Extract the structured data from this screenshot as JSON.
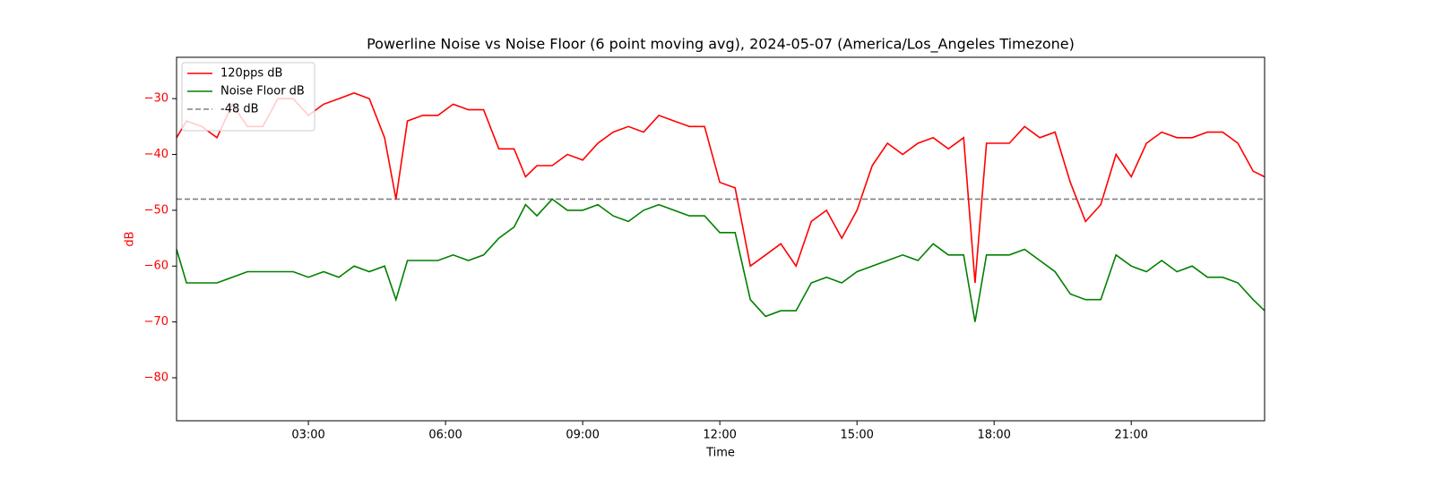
{
  "chart_data": {
    "type": "line",
    "title": "Powerline Noise vs Noise Floor (6 point moving avg), 2024-05-07 (America/Los_Angeles Timezone)",
    "xlabel": "Time",
    "ylabel": "dB",
    "x": [
      "00:07",
      "00:20",
      "00:40",
      "01:00",
      "01:20",
      "01:40",
      "02:00",
      "02:20",
      "02:40",
      "03:00",
      "03:20",
      "03:40",
      "04:00",
      "04:20",
      "04:40",
      "04:55",
      "05:10",
      "05:30",
      "05:50",
      "06:10",
      "06:30",
      "06:50",
      "07:10",
      "07:30",
      "07:45",
      "08:00",
      "08:20",
      "08:40",
      "09:00",
      "09:20",
      "09:40",
      "10:00",
      "10:20",
      "10:40",
      "11:00",
      "11:20",
      "11:40",
      "12:00",
      "12:20",
      "12:40",
      "13:00",
      "13:20",
      "13:40",
      "14:00",
      "14:20",
      "14:40",
      "15:00",
      "15:20",
      "15:40",
      "16:00",
      "16:20",
      "16:40",
      "17:00",
      "17:20",
      "17:35",
      "17:50",
      "18:00",
      "18:20",
      "18:40",
      "19:00",
      "19:20",
      "19:40",
      "20:00",
      "20:20",
      "20:40",
      "21:00",
      "21:20",
      "21:40",
      "22:00",
      "22:20",
      "22:40",
      "23:00",
      "23:20",
      "23:40",
      "23:55"
    ],
    "series": [
      {
        "name": "120pps dB",
        "color": "#ff0000",
        "values": [
          -37,
          -34,
          -35,
          -37,
          -31,
          -35,
          -35,
          -30,
          -30,
          -33,
          -31,
          -30,
          -29,
          -30,
          -37,
          -48,
          -34,
          -33,
          -33,
          -31,
          -32,
          -32,
          -39,
          -39,
          -44,
          -42,
          -42,
          -40,
          -41,
          -38,
          -36,
          -35,
          -36,
          -33,
          -34,
          -35,
          -35,
          -45,
          -46,
          -60,
          -58,
          -56,
          -60,
          -52,
          -50,
          -55,
          -50,
          -42,
          -38,
          -40,
          -38,
          -37,
          -39,
          -37,
          -63,
          -38,
          -38,
          -38,
          -35,
          -37,
          -36,
          -45,
          -52,
          -49,
          -40,
          -44,
          -38,
          -36,
          -37,
          -37,
          -36,
          -36,
          -38,
          -43,
          -44
        ]
      },
      {
        "name": "Noise Floor dB",
        "color": "#008000",
        "values": [
          -57,
          -63,
          -63,
          -63,
          -62,
          -61,
          -61,
          -61,
          -61,
          -62,
          -61,
          -62,
          -60,
          -61,
          -60,
          -66,
          -59,
          -59,
          -59,
          -58,
          -59,
          -58,
          -55,
          -53,
          -49,
          -51,
          -48,
          -50,
          -50,
          -49,
          -51,
          -52,
          -50,
          -49,
          -50,
          -51,
          -51,
          -54,
          -54,
          -66,
          -69,
          -68,
          -68,
          -63,
          -62,
          -63,
          -61,
          -60,
          -59,
          -58,
          -59,
          -56,
          -58,
          -58,
          -70,
          -58,
          -58,
          -58,
          -57,
          -59,
          -61,
          -65,
          -66,
          -66,
          -58,
          -60,
          -61,
          -59,
          -61,
          -60,
          -62,
          -62,
          -63,
          -66,
          -68
        ]
      }
    ],
    "reference_line": {
      "name": "-48 dB",
      "value": -48,
      "color": "#808080"
    },
    "xlim": [
      "00:07",
      "23:55"
    ],
    "xticks": [
      "03:00",
      "06:00",
      "09:00",
      "12:00",
      "15:00",
      "18:00",
      "21:00"
    ],
    "ylim": [
      -87.7,
      -22.6
    ],
    "yticks": [
      {
        "value": -80,
        "label": "−80"
      },
      {
        "value": -70,
        "label": "−70"
      },
      {
        "value": -60,
        "label": "−60"
      },
      {
        "value": -50,
        "label": "−50"
      },
      {
        "value": -40,
        "label": "−40"
      },
      {
        "value": -30,
        "label": "−30"
      }
    ],
    "ytick_color": "#ff0000",
    "legend": "upper left"
  }
}
